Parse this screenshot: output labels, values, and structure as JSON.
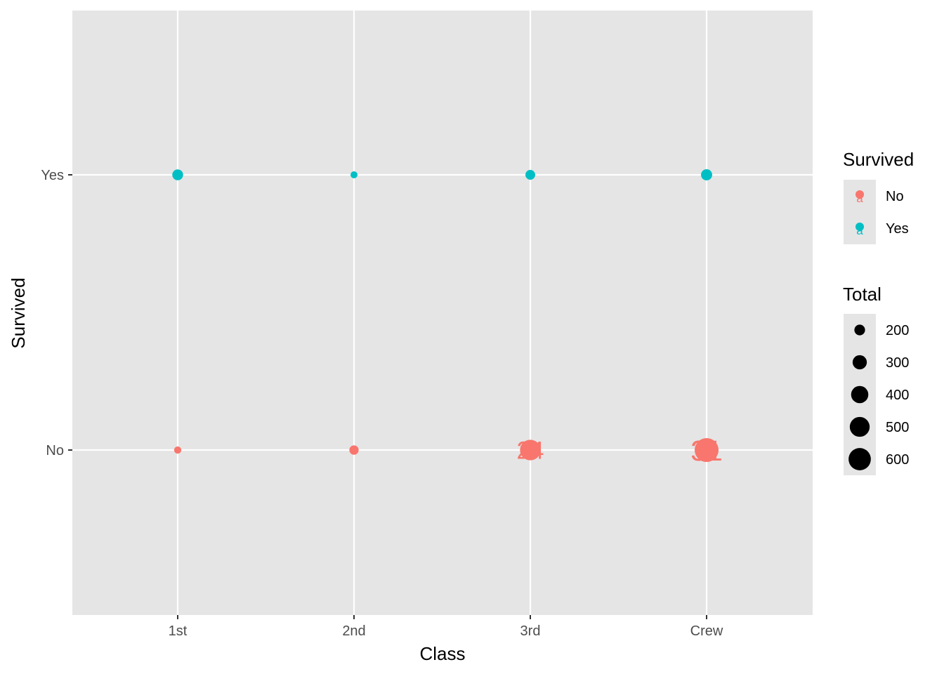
{
  "chart_data": {
    "type": "scatter",
    "title": "",
    "xlabel": "Class",
    "ylabel": "Survived",
    "categories": [
      "1st",
      "2nd",
      "3rd",
      "Crew"
    ],
    "y_categories": [
      "No",
      "Yes"
    ],
    "grid": true,
    "legend_placement": "right",
    "colors": {
      "No": "#F8766D",
      "Yes": "#00BFC4",
      "panel": "#E5E5E5",
      "grid": "#FFFFFF",
      "size_key": "#000000",
      "legend_key_bg": "#E5E5E5"
    },
    "points": [
      {
        "x": "1st",
        "y": "No",
        "total": 122,
        "survived": "No",
        "label": ""
      },
      {
        "x": "2nd",
        "y": "No",
        "total": 167,
        "survived": "No",
        "label": ""
      },
      {
        "x": "3rd",
        "y": "No",
        "total": 528,
        "survived": "No",
        "label": "24"
      },
      {
        "x": "Crew",
        "y": "No",
        "total": 673,
        "survived": "No",
        "label": "31"
      },
      {
        "x": "1st",
        "y": "Yes",
        "total": 203,
        "survived": "Yes",
        "label": ""
      },
      {
        "x": "2nd",
        "y": "Yes",
        "total": 118,
        "survived": "Yes",
        "label": ""
      },
      {
        "x": "3rd",
        "y": "Yes",
        "total": 178,
        "survived": "Yes",
        "label": ""
      },
      {
        "x": "Crew",
        "y": "Yes",
        "total": 212,
        "survived": "Yes",
        "label": ""
      }
    ],
    "legend_color": {
      "title": "Survived",
      "entries": [
        {
          "name": "No",
          "key_glyph": "a"
        },
        {
          "name": "Yes",
          "key_glyph": "a"
        }
      ]
    },
    "legend_size": {
      "title": "Total",
      "breaks": [
        200,
        300,
        400,
        500,
        600
      ]
    }
  }
}
